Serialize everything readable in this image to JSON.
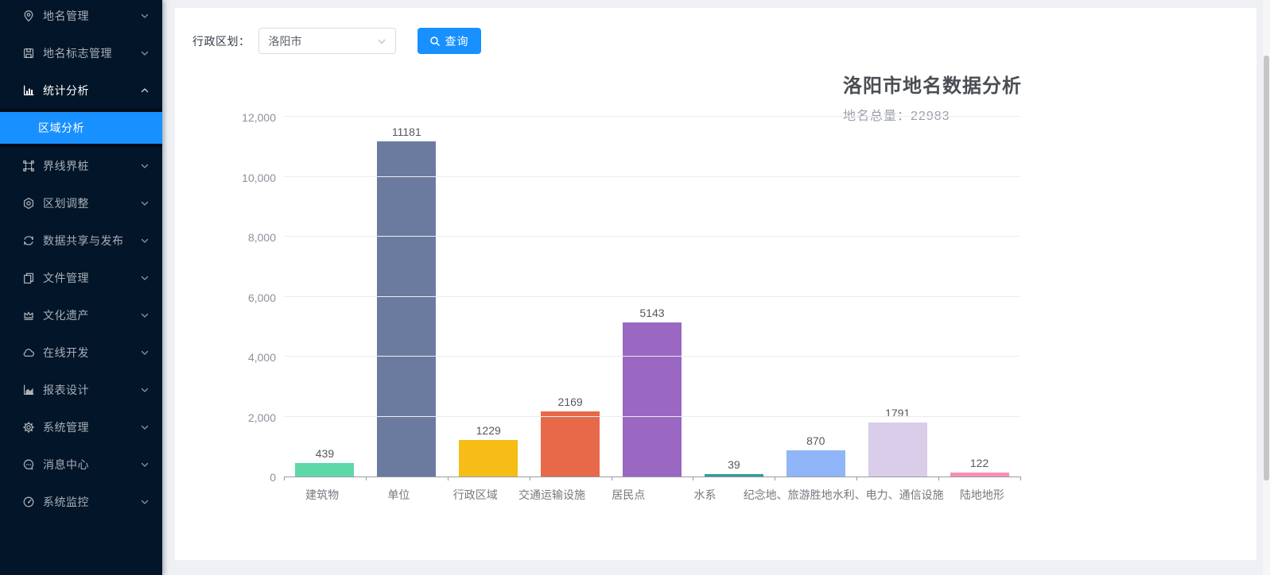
{
  "sidebar": {
    "items": [
      {
        "label": "地名管理",
        "icon": "location-pin-icon",
        "chevron": "down"
      },
      {
        "label": "地名标志管理",
        "icon": "signboard-icon",
        "chevron": "down"
      },
      {
        "label": "统计分析",
        "icon": "bar-chart-icon",
        "chevron": "up",
        "expanded": true
      },
      {
        "label": "界线界桩",
        "icon": "boundary-frame-icon",
        "chevron": "down"
      },
      {
        "label": "区划调整",
        "icon": "badge-icon",
        "chevron": "down"
      },
      {
        "label": "数据共享与发布",
        "icon": "sync-icon",
        "chevron": "down"
      },
      {
        "label": "文件管理",
        "icon": "files-icon",
        "chevron": "down"
      },
      {
        "label": "文化遗产",
        "icon": "crown-icon",
        "chevron": "down"
      },
      {
        "label": "在线开发",
        "icon": "cloud-icon",
        "chevron": "down"
      },
      {
        "label": "报表设计",
        "icon": "area-chart-icon",
        "chevron": "down"
      },
      {
        "label": "系统管理",
        "icon": "gear-icon",
        "chevron": "down"
      },
      {
        "label": "消息中心",
        "icon": "message-icon",
        "chevron": "down"
      },
      {
        "label": "系统监控",
        "icon": "gauge-icon",
        "chevron": "down"
      }
    ],
    "submenu": {
      "parent": "统计分析",
      "items": [
        {
          "label": "区域分析",
          "active": true
        }
      ]
    },
    "colors": {
      "background": "#021529",
      "submenu_background": "#000c17",
      "active": "#1890ff"
    }
  },
  "toolbar": {
    "region_label": "行政区划：",
    "region_select_value": "洛阳市",
    "search_button_label": "查询"
  },
  "chart_data": {
    "type": "bar",
    "title": "洛阳市地名数据分析",
    "subtitle_label": "地名总量：",
    "total": "22983",
    "categories": [
      "建筑物",
      "单位",
      "行政区域",
      "交通运输设施",
      "居民点",
      "水系",
      "纪念地、旅游胜地",
      "水利、电力、通信设施",
      "陆地地形"
    ],
    "values": [
      439,
      11181,
      1229,
      2169,
      5143,
      39,
      870,
      1791,
      122
    ],
    "bar_colors": [
      "#5ed8a7",
      "#6b7ba0",
      "#f6bd16",
      "#e8684a",
      "#9a67c2",
      "#2b9e9d",
      "#90b5f8",
      "#d9cdea",
      "#f78fb8"
    ],
    "xlabel": "",
    "ylabel": "",
    "ylim": [
      0,
      12000
    ],
    "y_ticks": [
      "0",
      "2,000",
      "4,000",
      "6,000",
      "8,000",
      "10,000",
      "12,000"
    ],
    "grid": true,
    "legend": "none"
  }
}
